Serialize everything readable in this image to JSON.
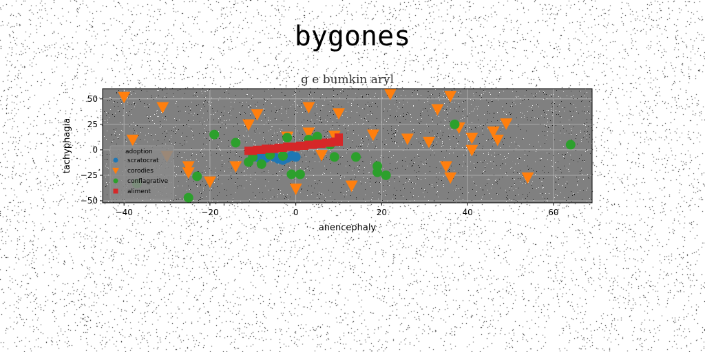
{
  "figure": {
    "suptitle": "bygones"
  },
  "chart_data": {
    "type": "scatter",
    "title": "g e bumkin aryl",
    "xlabel": "anencephaly",
    "ylabel": "tachyphagia",
    "xlim": [
      -45,
      69
    ],
    "ylim": [
      -52,
      60
    ],
    "xticks": [
      -40,
      -20,
      0,
      20,
      40,
      60
    ],
    "yticks": [
      -50,
      -25,
      0,
      25,
      50
    ],
    "grid": true,
    "background": "#808080",
    "legend": {
      "title": "adoption",
      "placement": "lower-left"
    },
    "series": [
      {
        "name": "scratocrat",
        "marker": "circle",
        "color": "#1f77b4",
        "x": [
          -10,
          -9,
          -8,
          -7,
          -6,
          -5,
          -4,
          -3,
          -2,
          -1,
          0
        ],
        "y": [
          -6,
          -7,
          -6,
          -8,
          -5,
          -7,
          -9,
          -10,
          -8,
          -6,
          -7
        ]
      },
      {
        "name": "corodies",
        "marker": "triangle-down",
        "color": "#ff7f0e",
        "x": [
          -40,
          -38,
          -31,
          -30,
          -25,
          -25,
          -20,
          -14,
          -11,
          -9,
          -2,
          0,
          3,
          3,
          6,
          9,
          10,
          13,
          18,
          22,
          26,
          31,
          33,
          35,
          36,
          36,
          38,
          41,
          41,
          46,
          47,
          49,
          54
        ],
        "y": [
          52,
          10,
          42,
          -6,
          -16,
          -22,
          -31,
          -16,
          25,
          35,
          13,
          -38,
          42,
          17,
          -5,
          14,
          36,
          -35,
          15,
          55,
          11,
          8,
          40,
          -16,
          53,
          -27,
          22,
          12,
          0,
          18,
          10,
          26,
          -27
        ]
      },
      {
        "name": "conflagrative",
        "marker": "circle",
        "color": "#2ca02c",
        "x": [
          -37,
          -25,
          -23,
          -19,
          -14,
          -11,
          -10,
          -8,
          -6,
          -3,
          -2,
          -1,
          1,
          3,
          5,
          8,
          9,
          14,
          19,
          19,
          21,
          37,
          64
        ],
        "y": [
          -33,
          -47,
          -26,
          15,
          7,
          -12,
          -7,
          -14,
          -5,
          -6,
          12,
          -24,
          -24,
          10,
          13,
          5,
          -7,
          -7,
          -16,
          -22,
          -25,
          25,
          5
        ]
      },
      {
        "name": "aliment",
        "marker": "square",
        "color": "#d62728",
        "x": [
          -11,
          -10,
          -9,
          -8,
          -7,
          -6,
          -5,
          -4,
          -3,
          -2,
          -1,
          0,
          1,
          2,
          3,
          4,
          5,
          6,
          7,
          8,
          9,
          10,
          10
        ],
        "y": [
          -1,
          -1,
          0,
          0,
          1,
          1,
          1,
          2,
          2,
          3,
          3,
          3,
          4,
          4,
          5,
          5,
          6,
          6,
          7,
          7,
          8,
          8,
          12
        ]
      }
    ]
  }
}
